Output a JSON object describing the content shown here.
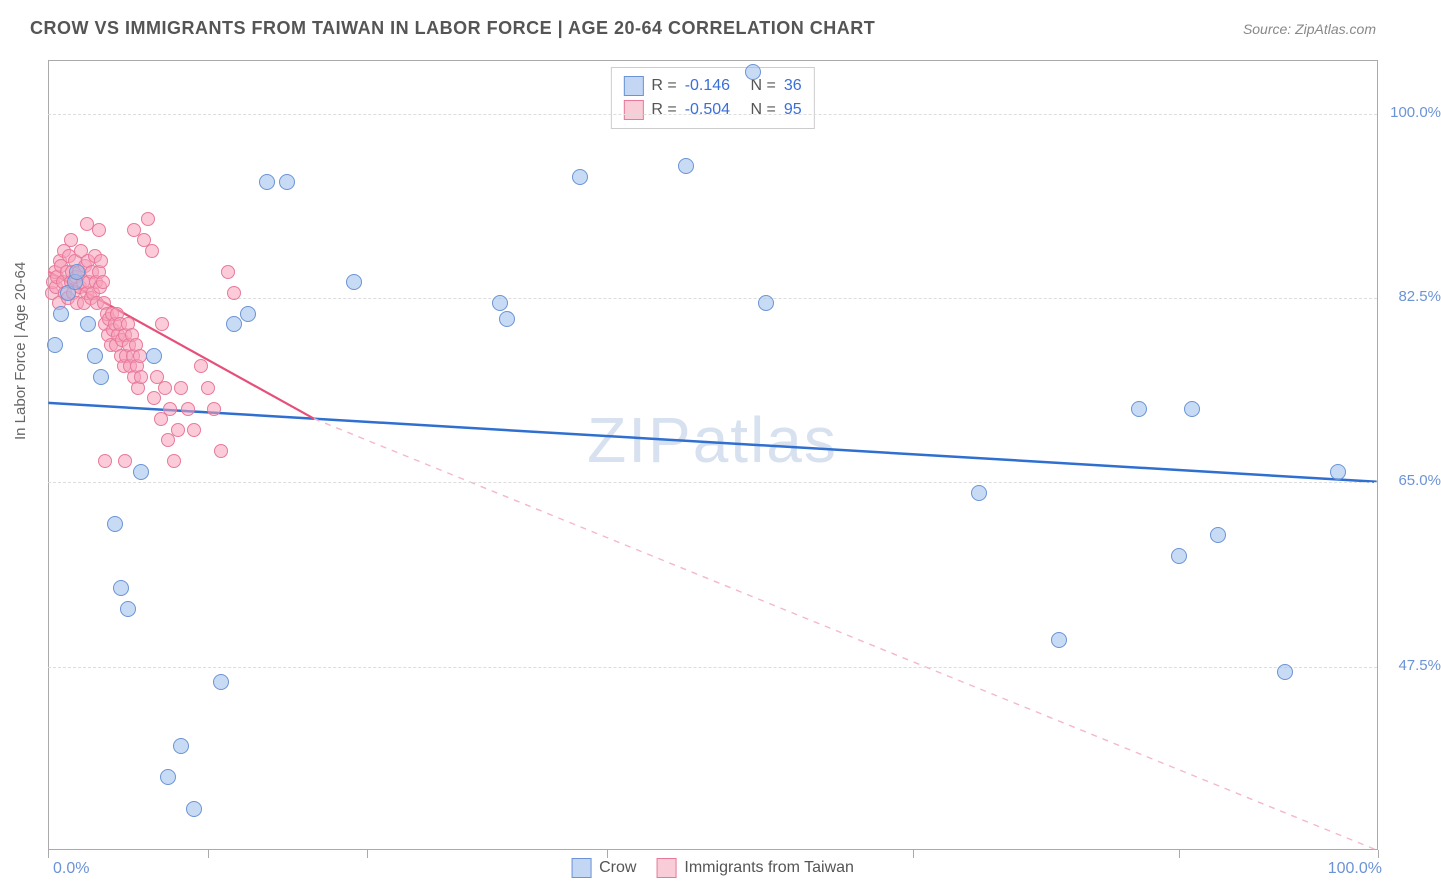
{
  "header": {
    "title": "CROW VS IMMIGRANTS FROM TAIWAN IN LABOR FORCE | AGE 20-64 CORRELATION CHART",
    "source": "Source: ZipAtlas.com"
  },
  "axes": {
    "y_label": "In Labor Force | Age 20-64",
    "x_min_label": "0.0%",
    "x_max_label": "100.0%",
    "xlim": [
      0,
      100
    ],
    "ylim": [
      30,
      105
    ],
    "y_ticks": [
      47.5,
      65.0,
      82.5,
      100.0
    ],
    "y_tick_labels": [
      "47.5%",
      "65.0%",
      "82.5%",
      "100.0%"
    ],
    "x_ticks": [
      0,
      12,
      24,
      42,
      65,
      85,
      100
    ],
    "grid_color": "#dddddd",
    "axis_color": "#aaaaaa",
    "tick_label_color": "#6b93d6"
  },
  "watermark": "ZIPatlas",
  "legend_top": {
    "rows": [
      {
        "swatch_fill": "#c3d7f4",
        "swatch_border": "#6b93d6",
        "R_label": "R =",
        "R": "-0.146",
        "N_label": "N =",
        "N": "36"
      },
      {
        "swatch_fill": "#f8cdd8",
        "swatch_border": "#e77a9a",
        "R_label": "R =",
        "R": "-0.504",
        "N_label": "N =",
        "N": "95"
      }
    ]
  },
  "legend_bottom": {
    "items": [
      {
        "swatch_fill": "#c3d7f4",
        "swatch_border": "#6b93d6",
        "label": "Crow"
      },
      {
        "swatch_fill": "#f8cdd8",
        "swatch_border": "#e77a9a",
        "label": "Immigrants from Taiwan"
      }
    ]
  },
  "series": {
    "crow": {
      "type": "scatter",
      "marker_radius": 8,
      "fill": "rgba(155,190,235,0.55)",
      "stroke": "#6b93d6",
      "stroke_width": 1.2,
      "trendline": {
        "color": "#2f6fd0",
        "width": 2.5,
        "dash": "none",
        "x1": 0,
        "y1": 72.5,
        "x2": 100,
        "y2": 65.0
      },
      "points": [
        [
          0.5,
          78
        ],
        [
          1,
          81
        ],
        [
          1.5,
          83
        ],
        [
          2,
          84
        ],
        [
          2.2,
          85
        ],
        [
          3,
          80
        ],
        [
          3.5,
          77
        ],
        [
          4,
          75
        ],
        [
          5,
          61
        ],
        [
          5.5,
          55
        ],
        [
          6,
          53
        ],
        [
          7,
          66
        ],
        [
          8,
          77
        ],
        [
          9,
          37
        ],
        [
          10,
          40
        ],
        [
          11,
          34
        ],
        [
          13,
          46
        ],
        [
          14,
          80
        ],
        [
          15,
          81
        ],
        [
          16.5,
          93.5
        ],
        [
          18,
          93.5
        ],
        [
          23,
          84
        ],
        [
          34,
          82
        ],
        [
          34.5,
          80.5
        ],
        [
          40,
          94
        ],
        [
          48,
          95
        ],
        [
          53,
          104
        ],
        [
          54,
          82
        ],
        [
          70,
          64
        ],
        [
          76,
          50
        ],
        [
          82,
          72
        ],
        [
          85,
          58
        ],
        [
          86,
          72
        ],
        [
          88,
          60
        ],
        [
          93,
          47
        ],
        [
          97,
          66
        ]
      ]
    },
    "taiwan": {
      "type": "scatter",
      "marker_radius": 7,
      "fill": "rgba(248,160,185,0.55)",
      "stroke": "#e77a9a",
      "stroke_width": 1.2,
      "trendline_solid": {
        "color": "#e64f7a",
        "width": 2.2,
        "dash": "none",
        "x1": 0,
        "y1": 85,
        "x2": 20,
        "y2": 71
      },
      "trendline_dash": {
        "color": "#f4b8c8",
        "width": 1.4,
        "dash": "6,6",
        "x1": 20,
        "y2_ref": 71,
        "x2": 100,
        "y2": 30
      },
      "points": [
        [
          0.3,
          83
        ],
        [
          0.4,
          84
        ],
        [
          0.5,
          85
        ],
        [
          0.6,
          83.5
        ],
        [
          0.7,
          84.5
        ],
        [
          0.8,
          82
        ],
        [
          0.9,
          86
        ],
        [
          1.0,
          85.5
        ],
        [
          1.1,
          84
        ],
        [
          1.2,
          87
        ],
        [
          1.3,
          83
        ],
        [
          1.4,
          85
        ],
        [
          1.5,
          82.5
        ],
        [
          1.6,
          86.5
        ],
        [
          1.7,
          84
        ],
        [
          1.8,
          85
        ],
        [
          1.9,
          83
        ],
        [
          2.0,
          86
        ],
        [
          2.1,
          84.5
        ],
        [
          2.2,
          82
        ],
        [
          2.3,
          85
        ],
        [
          2.4,
          83.5
        ],
        [
          2.5,
          87
        ],
        [
          2.6,
          84
        ],
        [
          2.7,
          82
        ],
        [
          2.8,
          85.5
        ],
        [
          2.9,
          83
        ],
        [
          3.0,
          86
        ],
        [
          3.1,
          84
        ],
        [
          3.2,
          82.5
        ],
        [
          3.3,
          85
        ],
        [
          3.4,
          83
        ],
        [
          3.5,
          86.5
        ],
        [
          3.6,
          84
        ],
        [
          3.7,
          82
        ],
        [
          3.8,
          85
        ],
        [
          3.9,
          83.5
        ],
        [
          4.0,
          86
        ],
        [
          4.1,
          84
        ],
        [
          4.2,
          82
        ],
        [
          4.3,
          80
        ],
        [
          4.4,
          81
        ],
        [
          4.5,
          79
        ],
        [
          4.6,
          80.5
        ],
        [
          4.7,
          78
        ],
        [
          4.8,
          81
        ],
        [
          4.9,
          79.5
        ],
        [
          5.0,
          80
        ],
        [
          5.1,
          78
        ],
        [
          5.2,
          81
        ],
        [
          5.3,
          79
        ],
        [
          5.4,
          80
        ],
        [
          5.5,
          77
        ],
        [
          5.6,
          78.5
        ],
        [
          5.7,
          76
        ],
        [
          5.8,
          79
        ],
        [
          5.9,
          77
        ],
        [
          6.0,
          80
        ],
        [
          6.1,
          78
        ],
        [
          6.2,
          76
        ],
        [
          6.3,
          79
        ],
        [
          6.4,
          77
        ],
        [
          6.5,
          75
        ],
        [
          6.6,
          78
        ],
        [
          6.7,
          76
        ],
        [
          6.8,
          74
        ],
        [
          6.9,
          77
        ],
        [
          7.0,
          75
        ],
        [
          7.2,
          88
        ],
        [
          7.5,
          90
        ],
        [
          7.8,
          87
        ],
        [
          8.0,
          73
        ],
        [
          8.2,
          75
        ],
        [
          8.5,
          71
        ],
        [
          8.8,
          74
        ],
        [
          9.0,
          69
        ],
        [
          9.2,
          72
        ],
        [
          9.5,
          67
        ],
        [
          9.8,
          70
        ],
        [
          10.0,
          74
        ],
        [
          10.5,
          72
        ],
        [
          11.0,
          70
        ],
        [
          11.5,
          76
        ],
        [
          12.0,
          74
        ],
        [
          12.5,
          72
        ],
        [
          13.0,
          68
        ],
        [
          13.5,
          85
        ],
        [
          14.0,
          83
        ],
        [
          6.5,
          89
        ],
        [
          3.8,
          89
        ],
        [
          2.9,
          89.5
        ],
        [
          1.7,
          88
        ],
        [
          4.3,
          67
        ],
        [
          5.8,
          67
        ],
        [
          8.6,
          80
        ]
      ]
    }
  },
  "colors": {
    "background": "#ffffff",
    "title_color": "#555555",
    "source_color": "#888888"
  }
}
